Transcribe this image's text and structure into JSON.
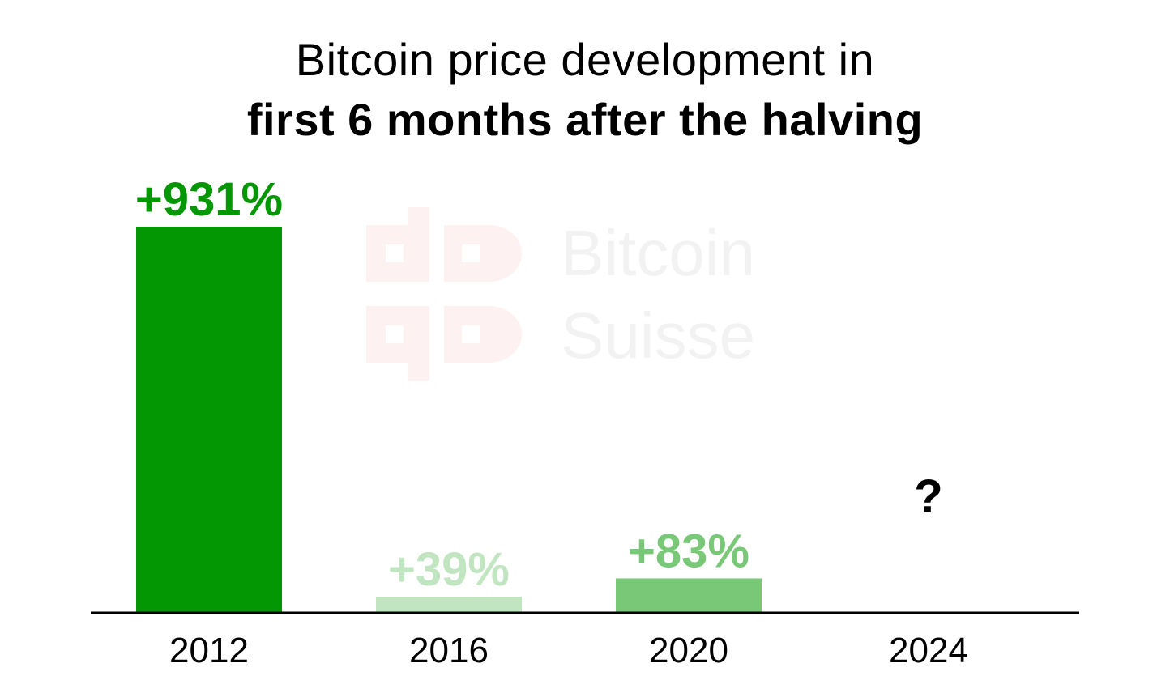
{
  "title": {
    "line1": "Bitcoin price development in",
    "line2": "first 6 months after the halving"
  },
  "watermark": {
    "line1": "Bitcoin",
    "line2": "Suisse",
    "logo_color": "#fdf1f1",
    "text_color": "#f2f2f2"
  },
  "chart_data": {
    "type": "bar",
    "categories": [
      "2012",
      "2016",
      "2020",
      "2024"
    ],
    "values": [
      931,
      39,
      83,
      null
    ],
    "labels": [
      "+931%",
      "+39%",
      "+83%",
      "?"
    ],
    "colors": [
      "#039703",
      "#c0e5c0",
      "#78c878",
      "#000000"
    ],
    "label_colors": [
      "#039703",
      "#c0e5c0",
      "#78c878",
      "#000000"
    ],
    "ylim": [
      0,
      931
    ],
    "grid": false,
    "legend": "none",
    "xlabel": "",
    "ylabel": ""
  }
}
